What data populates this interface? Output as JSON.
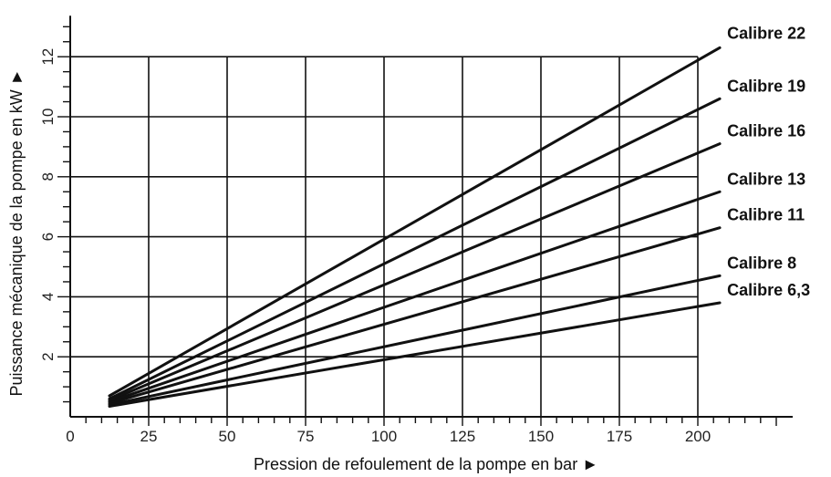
{
  "chart_data": {
    "type": "line",
    "title": "",
    "xlabel": "Pression de refoulement de la pompe en bar ►",
    "ylabel": "Puissance mécanique de la pompe en kW ►",
    "xlim": [
      0,
      225
    ],
    "ylim": [
      0,
      13
    ],
    "x_ticks": [
      "0",
      "25",
      "50",
      "75",
      "100",
      "125",
      "150",
      "175",
      "200"
    ],
    "y_ticks": [
      "2",
      "4",
      "6",
      "8",
      "10",
      "12"
    ],
    "grid": true,
    "legend": "inline labels at right end of lines",
    "series": [
      {
        "name": "Calibre 22",
        "points": [
          [
            12.5,
            0.7
          ],
          [
            207,
            12.3
          ]
        ]
      },
      {
        "name": "Calibre 19",
        "points": [
          [
            12.5,
            0.6
          ],
          [
            207,
            10.6
          ]
        ]
      },
      {
        "name": "Calibre 16",
        "points": [
          [
            12.5,
            0.55
          ],
          [
            207,
            9.1
          ]
        ]
      },
      {
        "name": "Calibre 13",
        "points": [
          [
            12.5,
            0.5
          ],
          [
            207,
            7.5
          ]
        ]
      },
      {
        "name": "Calibre 11",
        "points": [
          [
            12.5,
            0.45
          ],
          [
            207,
            6.3
          ]
        ]
      },
      {
        "name": "Calibre 8",
        "points": [
          [
            12.5,
            0.4
          ],
          [
            207,
            4.7
          ]
        ]
      },
      {
        "name": "Calibre 6,3",
        "points": [
          [
            12.5,
            0.35
          ],
          [
            207,
            3.8
          ]
        ]
      }
    ]
  }
}
